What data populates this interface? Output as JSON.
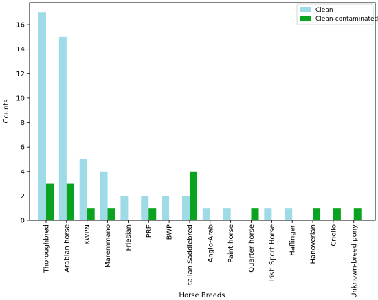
{
  "chart_data": {
    "type": "bar",
    "xlabel": "Horse Breeds",
    "ylabel": "Counts",
    "ylim": [
      0,
      17.8
    ],
    "yticks": [
      0,
      2,
      4,
      6,
      8,
      10,
      12,
      14,
      16
    ],
    "grid": false,
    "legend_position": "top-right",
    "categories": [
      "Thoroughbred",
      "Arabian horse",
      "KWPN",
      "Maremmano",
      "Friesian",
      "PRE",
      "BWP",
      "Italian Saddlebred",
      "Anglo-Arab",
      "Paint horse",
      "Quarter horse",
      "Irish Sport Horse",
      "Haflinger",
      "Hanoverian",
      "Criollo",
      "Unknown-breed pony"
    ],
    "series": [
      {
        "name": "Clean",
        "color": "#9fdbe6",
        "values": [
          17,
          15,
          5,
          4,
          2,
          2,
          2,
          2,
          1,
          1,
          0,
          1,
          1,
          0,
          0,
          0
        ]
      },
      {
        "name": "Clean-contaminated",
        "color": "#0aa31f",
        "values": [
          3,
          3,
          1,
          1,
          0,
          1,
          0,
          4,
          0,
          0,
          1,
          0,
          0,
          1,
          1,
          1
        ]
      }
    ]
  }
}
